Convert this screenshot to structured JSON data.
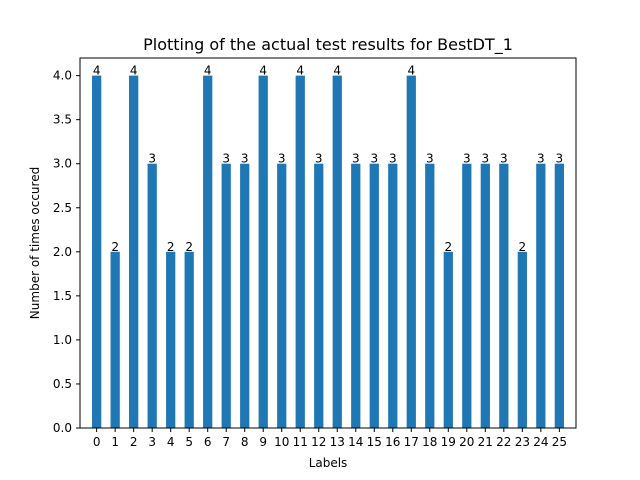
{
  "chart_data": {
    "type": "bar",
    "title": "Plotting of the actual test results for BestDT_1",
    "xlabel": "Labels",
    "ylabel": "Number of times occured",
    "categories": [
      "0",
      "1",
      "2",
      "3",
      "4",
      "5",
      "6",
      "7",
      "8",
      "9",
      "10",
      "11",
      "12",
      "13",
      "14",
      "15",
      "16",
      "17",
      "18",
      "19",
      "20",
      "21",
      "22",
      "23",
      "24",
      "25"
    ],
    "values": [
      4,
      2,
      4,
      3,
      2,
      2,
      4,
      3,
      3,
      4,
      3,
      4,
      3,
      4,
      3,
      3,
      3,
      4,
      3,
      2,
      3,
      3,
      3,
      2,
      3,
      3
    ],
    "data_labels": [
      "4",
      "2",
      "4",
      "3",
      "2",
      "2",
      "4",
      "3",
      "3",
      "4",
      "3",
      "4",
      "3",
      "4",
      "3",
      "3",
      "3",
      "4",
      "3",
      "2",
      "3",
      "3",
      "3",
      "2",
      "3",
      "3"
    ],
    "ylim": [
      0,
      4.2
    ],
    "yticks": [
      "0.0",
      "0.5",
      "1.0",
      "1.5",
      "2.0",
      "2.5",
      "3.0",
      "3.5",
      "4.0"
    ],
    "grid": false,
    "legend": "none",
    "bar_color": "#1f77b4"
  }
}
